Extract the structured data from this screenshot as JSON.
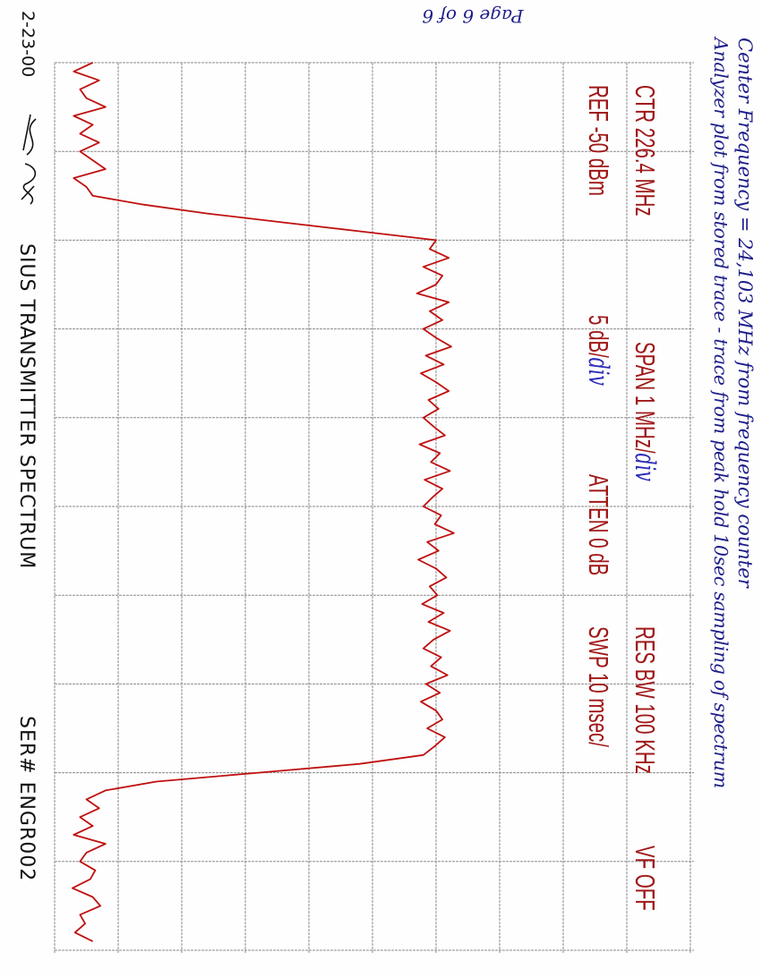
{
  "page_label": "Page 6 of 6",
  "notes": {
    "line1": "Center Frequency = 24,103 MHz from frequency counter",
    "line2": "Analyzer plot from stored trace - trace from peak hold 10sec sampling of spectrum"
  },
  "settings": {
    "ctr": "CTR  226.4 MHz",
    "span": "SPAN 1 MHz/",
    "span_unit": "div",
    "res_bw": "RES BW 100 KHz",
    "vf": "VF OFF",
    "ref": "REF -50 dBm",
    "scale": "5 dB/",
    "scale_unit": "div",
    "atten": "ATTEN 0 dB",
    "swp": "SWP 10 msec/"
  },
  "footer": {
    "date": "2-23-00",
    "signature": "signature",
    "title": "SIUS TRANSMITTER SPECTRUM",
    "serial": "SER# ENGR002"
  },
  "colors": {
    "trace": "#c01010",
    "grid": "#8a8a8a",
    "printed_text": "#a01818",
    "handwriting": "#1d1d8a"
  },
  "chart_data": {
    "type": "line",
    "title": "",
    "orientation": "rotated 90 degrees clockwise (frequency runs top to bottom, amplitude increases to the right)",
    "xlabel": "",
    "ylabel": "",
    "x_unit": "MHz",
    "y_unit": "dBm",
    "xlim": [
      221.4,
      231.4
    ],
    "ylim": [
      -100,
      -50
    ],
    "x_divisions": 10,
    "y_divisions": 10,
    "grid": true,
    "series": [
      {
        "x_start": 221.4,
        "x_step": 0.1,
        "values": [
          -97,
          -98.5,
          -96.5,
          -98,
          -97.5,
          -96,
          -98.5,
          -97,
          -98,
          -96.5,
          -98,
          -97,
          -96,
          -98.5,
          -97.5,
          -97,
          -93,
          -88,
          -82,
          -76,
          -70,
          -70.5,
          -69,
          -71,
          -69.5,
          -70,
          -71.5,
          -69,
          -70.5,
          -69.5,
          -71,
          -70,
          -68.8,
          -70.8,
          -69.4,
          -71.2,
          -70,
          -69,
          -70.6,
          -69.8,
          -71,
          -70.2,
          -69.3,
          -71.3,
          -69.7,
          -70.4,
          -68.9,
          -70.9,
          -69.5,
          -70.3,
          -71,
          -69.6,
          -70.1,
          -68.6,
          -70.7,
          -69.8,
          -71.4,
          -70,
          -69.2,
          -70.5,
          -69.9,
          -71.1,
          -69.4,
          -70.6,
          -68.9,
          -70.2,
          -71,
          -69.6,
          -70.4,
          -69.1,
          -70.8,
          -69.7,
          -71.2,
          -70,
          -69.5,
          -70.7,
          -69.3,
          -70.1,
          -71,
          -76,
          -84,
          -92,
          -96,
          -97.5,
          -96.5,
          -98,
          -97,
          -98.5,
          -96,
          -97.5,
          -98,
          -96.8,
          -97.2,
          -98.6,
          -97,
          -96.4,
          -98,
          -97.6,
          -98.4,
          -97
        ]
      }
    ]
  }
}
